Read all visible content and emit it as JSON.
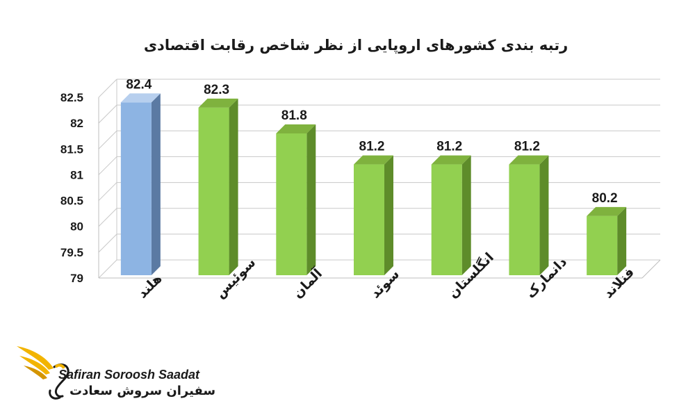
{
  "chart_data": {
    "type": "bar",
    "title": "رتبه بندی کشورهای اروپایی از نظر شاخص رقابت اقتصادی",
    "categories": [
      "هلند",
      "سوئیس",
      "آلمان",
      "سوئد",
      "انگلستان",
      "دانمارک",
      "فنلاند"
    ],
    "values": [
      82.4,
      82.3,
      81.8,
      81.2,
      81.2,
      81.2,
      80.2
    ],
    "data_labels": [
      "82.4",
      "82.3",
      "81.8",
      "81.2",
      "81.2",
      "81.2",
      "80.2"
    ],
    "ylim": [
      79,
      82.5
    ],
    "yticks": [
      "79",
      "79.5",
      "80",
      "80.5",
      "81",
      "81.5",
      "82",
      "82.5"
    ],
    "grid": true,
    "legend": "none",
    "colors": {
      "highlight_front": "#8db4e3",
      "highlight_side": "#5b7aa3",
      "highlight_top": "#b7cfee",
      "bar_front": "#92d050",
      "bar_side": "#5e8c2a",
      "bar_top": "#7fb23e"
    }
  },
  "logo": {
    "name_en": "Safiran Soroosh Saadat",
    "name_fa": "سفیران سروش سعادت",
    "colors": {
      "wing": "#f2b400",
      "wing_dark": "#d49500"
    }
  }
}
